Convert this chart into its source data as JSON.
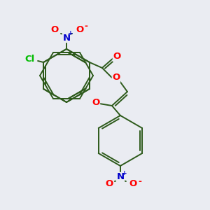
{
  "bg_color": "#eaecf2",
  "bond_color": "#2d5a1b",
  "atom_colors": {
    "O": "#ff0000",
    "N": "#0000cc",
    "Cl": "#00bb00"
  },
  "figsize": [
    3.0,
    3.0
  ],
  "dpi": 100,
  "lw": 1.4,
  "fs_heavy": 9.5,
  "fs_charge": 6.5
}
